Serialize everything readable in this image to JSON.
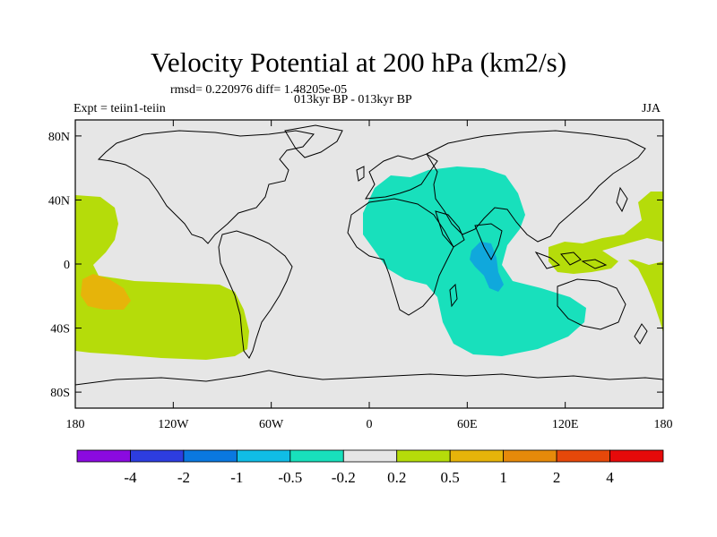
{
  "title": "Velocity Potential at 200 hPa (km2/s)",
  "stats_line": "rmsd= 0.220976 diff= 1.48205e-05",
  "period_line": "013kyr BP - 013kyr BP",
  "experiment": "Expt = teiin1-teiin",
  "season": "JJA",
  "x_ticks": [
    "180",
    "120W",
    "60W",
    "0",
    "60E",
    "120E",
    "180"
  ],
  "y_ticks": [
    "80N",
    "40N",
    "0",
    "40S",
    "80S"
  ],
  "colorbar": {
    "colors": [
      "#8b0ae0",
      "#2d3de0",
      "#0a78e0",
      "#10bde6",
      "#18e0bc",
      "#e6e6e6",
      "#b5dc0a",
      "#e6b40a",
      "#e68a0a",
      "#e6480a",
      "#e60a0a"
    ],
    "labels": [
      "-4",
      "-2",
      "-1",
      "-0.5",
      "-0.2",
      "0.2",
      "0.5",
      "1",
      "2",
      "4"
    ]
  },
  "map_colors": {
    "background": "#e6e6e6",
    "negative_light": "#18e0bc",
    "negative_mid": "#10a8dc",
    "positive_light": "#b5dc0a",
    "positive_mid": "#e6b40a"
  }
}
